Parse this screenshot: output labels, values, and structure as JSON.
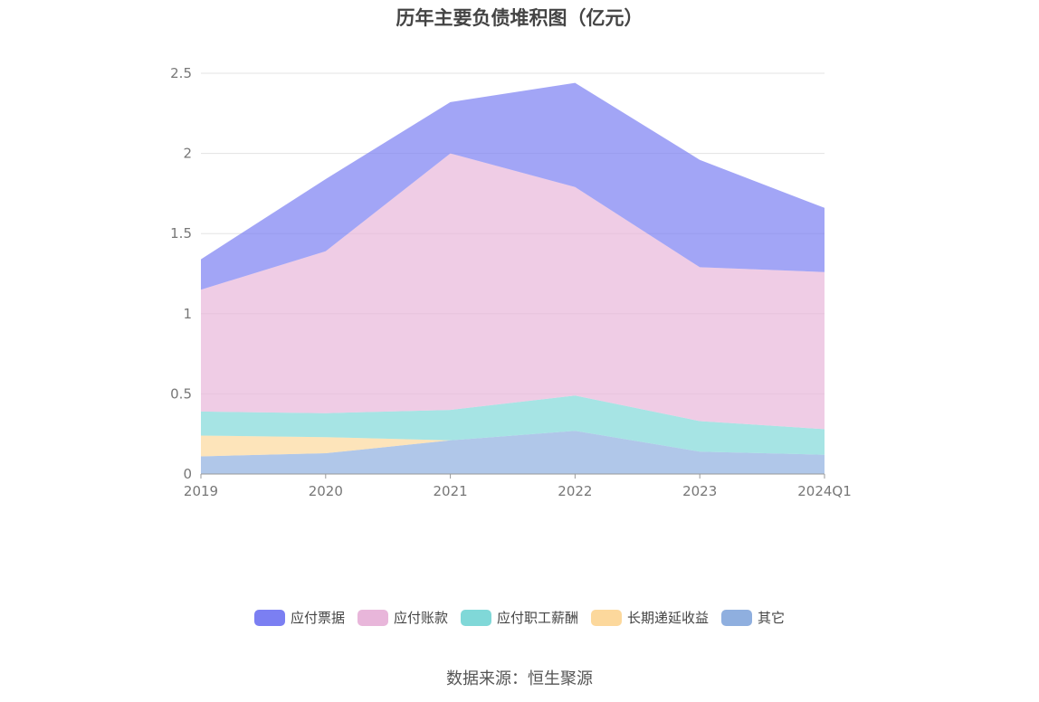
{
  "chart_data": {
    "type": "area",
    "stacked": true,
    "title": "历年主要负债堆积图（亿元）",
    "categories": [
      "2019",
      "2020",
      "2021",
      "2022",
      "2023",
      "2024Q1"
    ],
    "ylim": [
      0,
      2.5
    ],
    "yticks": [
      "0",
      "0.5",
      "1",
      "1.5",
      "2",
      "2.5"
    ],
    "grid": true,
    "legend_position": "bottom",
    "series": [
      {
        "name": "其它",
        "color": "#8fafdf",
        "values": [
          0.11,
          0.13,
          0.21,
          0.27,
          0.14,
          0.12
        ]
      },
      {
        "name": "长期递延收益",
        "color": "#fcd89c",
        "values": [
          0.13,
          0.1,
          0.0,
          0.0,
          0.0,
          0.0
        ]
      },
      {
        "name": "应付职工薪酬",
        "color": "#80d8d8",
        "values": [
          0.15,
          0.15,
          0.19,
          0.22,
          0.19,
          0.16
        ]
      },
      {
        "name": "应付账款",
        "color": "#e8b6da",
        "values": [
          0.76,
          1.01,
          1.6,
          1.3,
          0.96,
          0.98
        ]
      },
      {
        "name": "应付票据",
        "color": "#7b7ff2",
        "values": [
          0.19,
          0.45,
          0.32,
          0.65,
          0.67,
          0.4
        ]
      }
    ],
    "legend_order": [
      "应付票据",
      "应付账款",
      "应付职工薪酬",
      "长期递延收益",
      "其它"
    ]
  },
  "source": "数据来源：恒生聚源"
}
